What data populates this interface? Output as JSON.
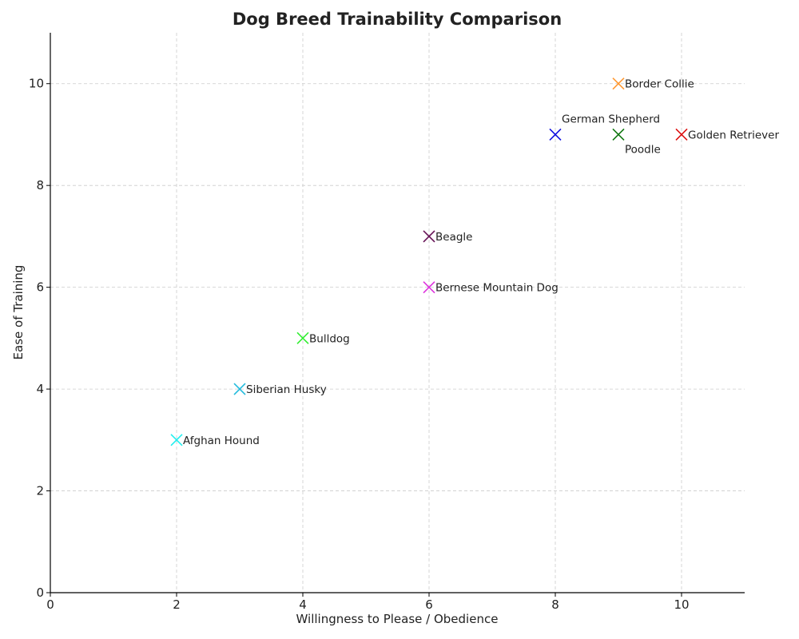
{
  "chart_data": {
    "type": "scatter",
    "title": "Dog Breed Trainability Comparison",
    "xlabel": "Willingness to Please / Obedience",
    "ylabel": "Ease of Training",
    "xlim": [
      0,
      11
    ],
    "ylim": [
      0,
      11
    ],
    "xticks": [
      0,
      2,
      4,
      6,
      8,
      10
    ],
    "yticks": [
      0,
      2,
      4,
      6,
      8,
      10
    ],
    "grid": true,
    "marker": "x",
    "points": [
      {
        "label": "Border Collie",
        "x": 9,
        "y": 10,
        "color": "#ff9933",
        "label_pos": "right"
      },
      {
        "label": "German Shepherd",
        "x": 8,
        "y": 9,
        "color": "#1010e0",
        "label_pos": "above-right"
      },
      {
        "label": "Poodle",
        "x": 9,
        "y": 9,
        "color": "#117711",
        "label_pos": "below-right"
      },
      {
        "label": "Golden Retriever",
        "x": 10,
        "y": 9,
        "color": "#dd1111",
        "label_pos": "right"
      },
      {
        "label": "Beagle",
        "x": 6,
        "y": 7,
        "color": "#661155",
        "label_pos": "right"
      },
      {
        "label": "Bernese Mountain Dog",
        "x": 6,
        "y": 6,
        "color": "#dd33dd",
        "label_pos": "right"
      },
      {
        "label": "Bulldog",
        "x": 4,
        "y": 5,
        "color": "#33ee33",
        "label_pos": "right"
      },
      {
        "label": "Siberian Husky",
        "x": 3,
        "y": 4,
        "color": "#22bbdd",
        "label_pos": "right"
      },
      {
        "label": "Afghan Hound",
        "x": 2,
        "y": 3,
        "color": "#22eeee",
        "label_pos": "right"
      }
    ]
  }
}
